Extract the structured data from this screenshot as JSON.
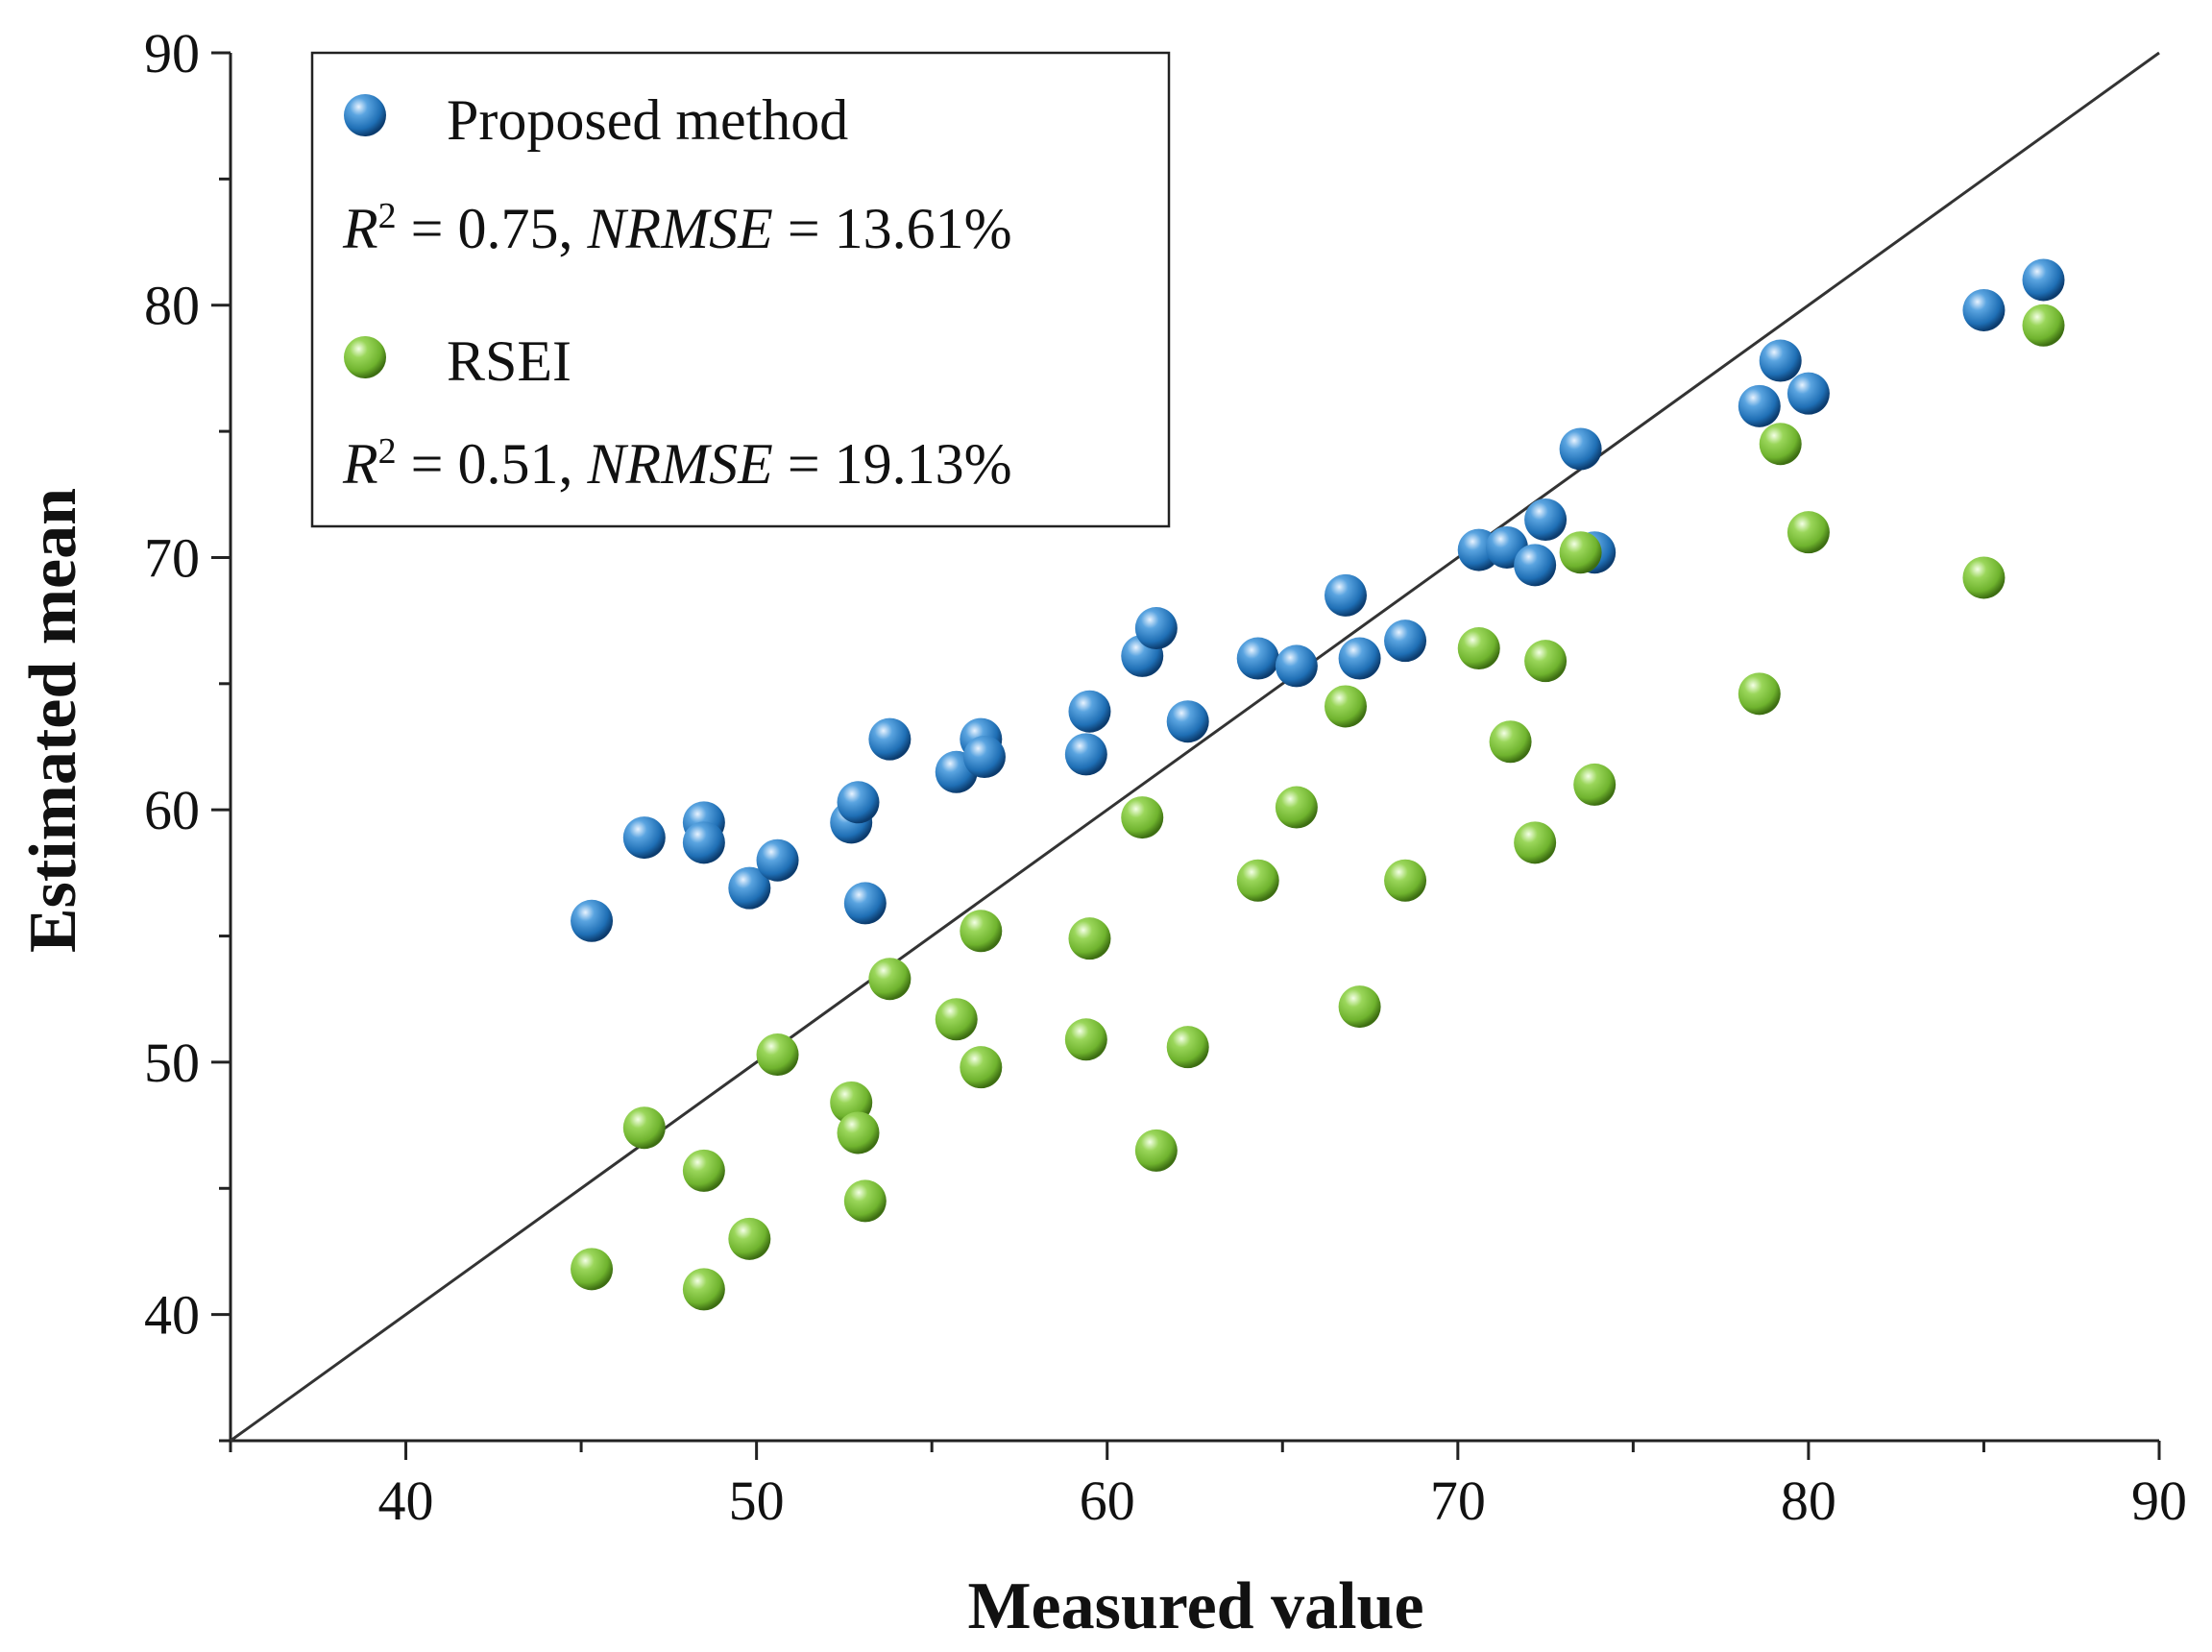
{
  "chart_data": {
    "type": "scatter",
    "title": "",
    "xlabel": "Measured value",
    "ylabel": "Estimated mean",
    "xlim": [
      35,
      90
    ],
    "ylim": [
      35,
      90
    ],
    "xticks": [
      "40",
      "50",
      "60",
      "70",
      "80",
      "90"
    ],
    "yticks": [
      "40",
      "50",
      "60",
      "70",
      "80",
      "90"
    ],
    "reference_line": "1:1",
    "legend_position": "top-left",
    "series": [
      {
        "name": "Proposed method",
        "color": "#1f6fb5",
        "stats": {
          "r2_label": "R",
          "r2_sup": "2",
          "r2_text": " = 0.75, ",
          "nrmse_label": "NRMSE",
          "nrmse_text": " = 13.61%"
        },
        "points": [
          [
            45.3,
            55.6
          ],
          [
            46.8,
            58.9
          ],
          [
            48.5,
            59.5
          ],
          [
            48.5,
            58.7
          ],
          [
            49.8,
            56.9
          ],
          [
            50.6,
            58.0
          ],
          [
            52.7,
            59.5
          ],
          [
            52.9,
            60.3
          ],
          [
            53.1,
            56.3
          ],
          [
            53.8,
            62.8
          ],
          [
            55.7,
            61.5
          ],
          [
            56.4,
            62.8
          ],
          [
            56.5,
            62.1
          ],
          [
            59.4,
            62.2
          ],
          [
            59.5,
            63.9
          ],
          [
            61.0,
            66.1
          ],
          [
            61.4,
            67.2
          ],
          [
            62.3,
            63.5
          ],
          [
            64.3,
            66.0
          ],
          [
            65.4,
            65.7
          ],
          [
            66.8,
            68.5
          ],
          [
            67.2,
            66.0
          ],
          [
            68.5,
            66.7
          ],
          [
            70.6,
            70.3
          ],
          [
            71.4,
            70.4
          ],
          [
            72.2,
            69.7
          ],
          [
            72.5,
            71.5
          ],
          [
            73.5,
            74.3
          ],
          [
            73.9,
            70.2
          ],
          [
            78.6,
            76.0
          ],
          [
            79.2,
            77.8
          ],
          [
            80.0,
            76.5
          ],
          [
            85.0,
            79.8
          ],
          [
            86.7,
            81.0
          ]
        ]
      },
      {
        "name": "RSEI",
        "color": "#6fb32e",
        "stats": {
          "r2_label": "R",
          "r2_sup": "2",
          "r2_text": " = 0.51, ",
          "nrmse_label": "NRMSE",
          "nrmse_text": " = 19.13%"
        },
        "points": [
          [
            45.3,
            41.8
          ],
          [
            46.8,
            47.4
          ],
          [
            48.5,
            45.7
          ],
          [
            48.5,
            41.0
          ],
          [
            49.8,
            43.0
          ],
          [
            50.6,
            50.3
          ],
          [
            52.7,
            48.4
          ],
          [
            52.9,
            47.2
          ],
          [
            53.1,
            44.5
          ],
          [
            53.8,
            53.3
          ],
          [
            55.7,
            51.7
          ],
          [
            56.4,
            55.2
          ],
          [
            56.4,
            49.8
          ],
          [
            59.4,
            50.9
          ],
          [
            59.5,
            54.9
          ],
          [
            61.0,
            59.7
          ],
          [
            61.4,
            46.5
          ],
          [
            62.3,
            50.6
          ],
          [
            64.3,
            57.2
          ],
          [
            65.4,
            60.1
          ],
          [
            66.8,
            64.1
          ],
          [
            67.2,
            52.2
          ],
          [
            68.5,
            57.2
          ],
          [
            70.6,
            66.4
          ],
          [
            71.5,
            62.7
          ],
          [
            72.2,
            58.7
          ],
          [
            72.5,
            65.9
          ],
          [
            73.5,
            70.2
          ],
          [
            73.9,
            61.0
          ],
          [
            78.6,
            64.6
          ],
          [
            79.2,
            74.5
          ],
          [
            80.0,
            71.0
          ],
          [
            85.0,
            69.2
          ],
          [
            86.7,
            79.2
          ]
        ]
      }
    ]
  }
}
